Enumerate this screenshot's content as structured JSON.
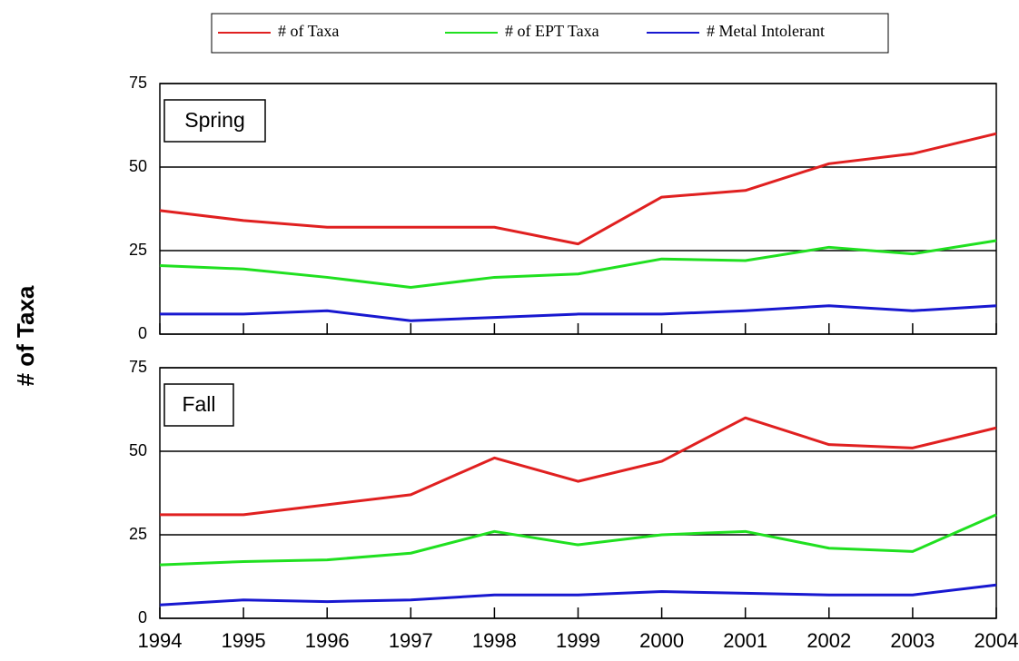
{
  "chart_data": {
    "type": "line",
    "ylabel": "# of Taxa",
    "x": [
      1994,
      1995,
      1996,
      1997,
      1998,
      1999,
      2000,
      2001,
      2002,
      2003,
      2004
    ],
    "xlim": [
      1994,
      2004
    ],
    "xticks": [
      1994,
      1995,
      1996,
      1997,
      1998,
      1999,
      2000,
      2001,
      2002,
      2003,
      2004
    ],
    "ylim": [
      0,
      75
    ],
    "yticks": [
      0,
      25,
      50,
      75
    ],
    "grid": true,
    "series": [
      {
        "name": "# of Taxa",
        "color": "#e02020"
      },
      {
        "name": "# of EPT Taxa",
        "color": "#20e020"
      },
      {
        "name": "# Metal Intolerant",
        "color": "#1818d0"
      }
    ],
    "panels": [
      {
        "label": "Spring",
        "series": [
          {
            "values": [
              37,
              34,
              32,
              32,
              32,
              27,
              41,
              43,
              51,
              54,
              60
            ]
          },
          {
            "values": [
              20.5,
              19.5,
              17,
              14,
              17,
              18,
              22.5,
              22,
              26,
              24,
              28
            ]
          },
          {
            "values": [
              6,
              6,
              7,
              4,
              5,
              6,
              6,
              7,
              8.5,
              7,
              8.5
            ]
          }
        ]
      },
      {
        "label": "Fall",
        "series": [
          {
            "values": [
              31,
              31,
              34,
              37,
              48,
              41,
              47,
              60,
              52,
              51,
              57
            ]
          },
          {
            "values": [
              16,
              17,
              17.5,
              19.5,
              26,
              22,
              25,
              26,
              21,
              20,
              31
            ]
          },
          {
            "values": [
              4,
              5.5,
              5,
              5.5,
              7,
              7,
              8,
              7.5,
              7,
              7,
              10
            ]
          }
        ]
      }
    ]
  }
}
